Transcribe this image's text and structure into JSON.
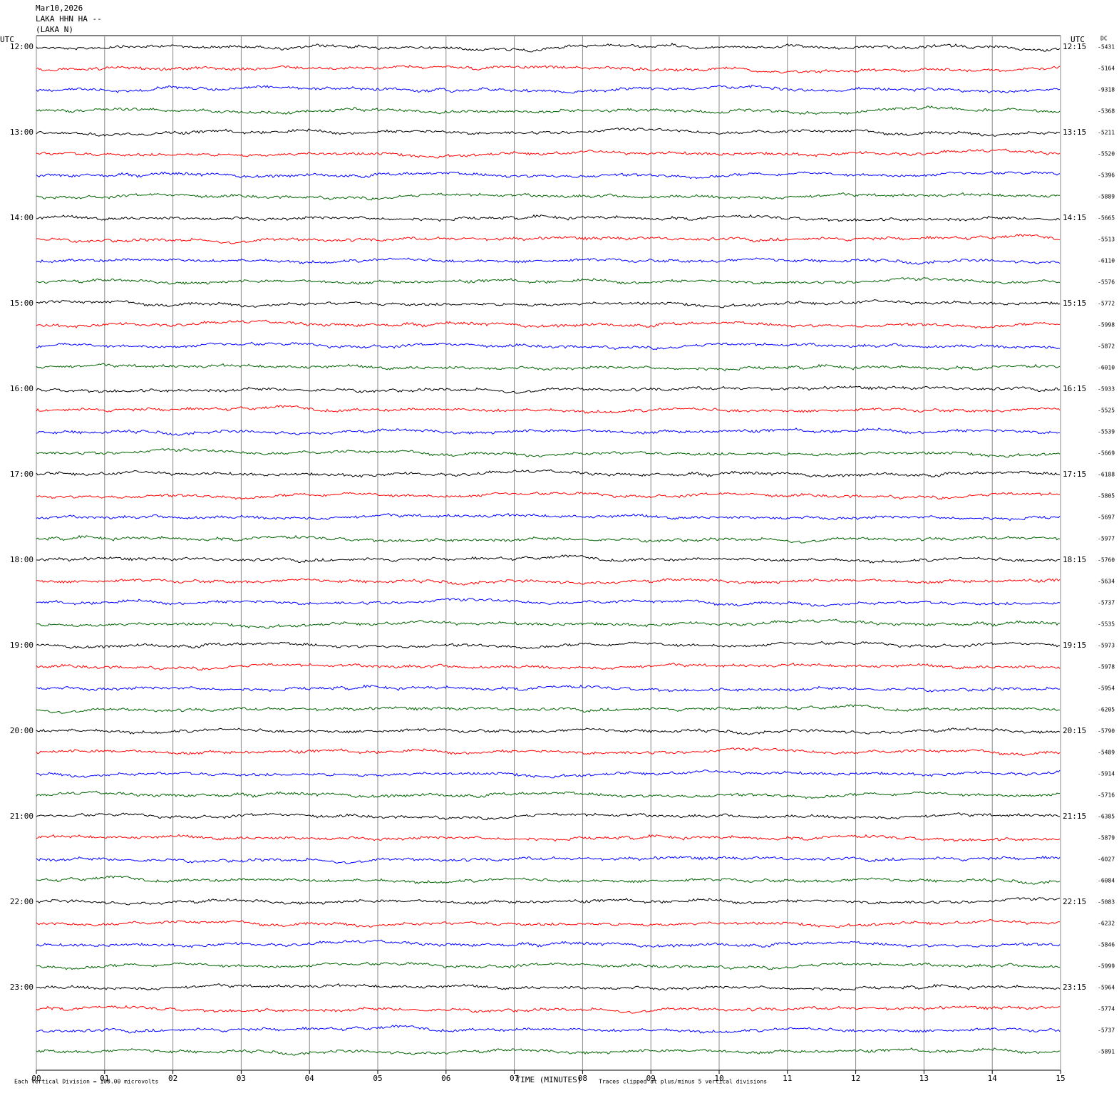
{
  "chart_data": {
    "type": "helicorder",
    "title": [
      "Mar10,2026",
      "LAKA HHN HA --",
      "(LAKA N)"
    ],
    "left_axis_label": "UTC",
    "right_axis_label": "UTC",
    "dc_label": "DC",
    "row_labels_left": [
      "12:00",
      "13:00",
      "14:00",
      "15:00",
      "16:00",
      "17:00",
      "18:00",
      "19:00",
      "20:00",
      "21:00",
      "22:00",
      "23:00"
    ],
    "row_labels_right": [
      "12:15",
      "13:15",
      "14:15",
      "15:15",
      "16:15",
      "17:15",
      "18:15",
      "19:15",
      "20:15",
      "21:15",
      "22:15",
      "23:15"
    ],
    "dc_values": [
      "-5431",
      "-5164",
      "-9318",
      "-5368",
      "-5211",
      "-5520",
      "-5396",
      "-5889",
      "-5665",
      "-5513",
      "-6110",
      "-5576",
      "-5772",
      "-5998",
      "-5872",
      "-6010",
      "-5933",
      "-5525",
      "-5539",
      "-5669",
      "-6188",
      "-5805",
      "-5697",
      "-5977",
      "-5760",
      "-5634",
      "-5737",
      "-5535",
      "-5973",
      "-5978",
      "-5954",
      "-6205",
      "-5790",
      "-5489",
      "-5914",
      "-5716",
      "-6385",
      "-5879",
      "-6027",
      "-6084",
      "-5083",
      "-6232",
      "-5846",
      "-5999",
      "-5964",
      "-5774",
      "-5737",
      "-5891"
    ],
    "xlim": [
      0,
      15
    ],
    "xticks": [
      {
        "value": 0,
        "label": "00"
      },
      {
        "value": 1,
        "label": "01"
      },
      {
        "value": 2,
        "label": "02"
      },
      {
        "value": 3,
        "label": "03"
      },
      {
        "value": 4,
        "label": "04"
      },
      {
        "value": 5,
        "label": "05"
      },
      {
        "value": 6,
        "label": "06"
      },
      {
        "value": 7,
        "label": "07"
      },
      {
        "value": 8,
        "label": "08"
      },
      {
        "value": 9,
        "label": "09"
      },
      {
        "value": 10,
        "label": "10"
      },
      {
        "value": 11,
        "label": "11"
      },
      {
        "value": 12,
        "label": "12"
      },
      {
        "value": 13,
        "label": "13"
      },
      {
        "value": 14,
        "label": "14"
      },
      {
        "value": 15,
        "label": "15"
      }
    ],
    "xlabel": "TIME (MINUTES)",
    "scale_note": "Each Vertical Division =  100.00 microvolts",
    "clip_note": "Traces clipped at plus/minus 5 vertical divisions",
    "trace_colors": [
      "#000000",
      "#ff0000",
      "#0000ff",
      "#006400"
    ],
    "grid": true
  }
}
